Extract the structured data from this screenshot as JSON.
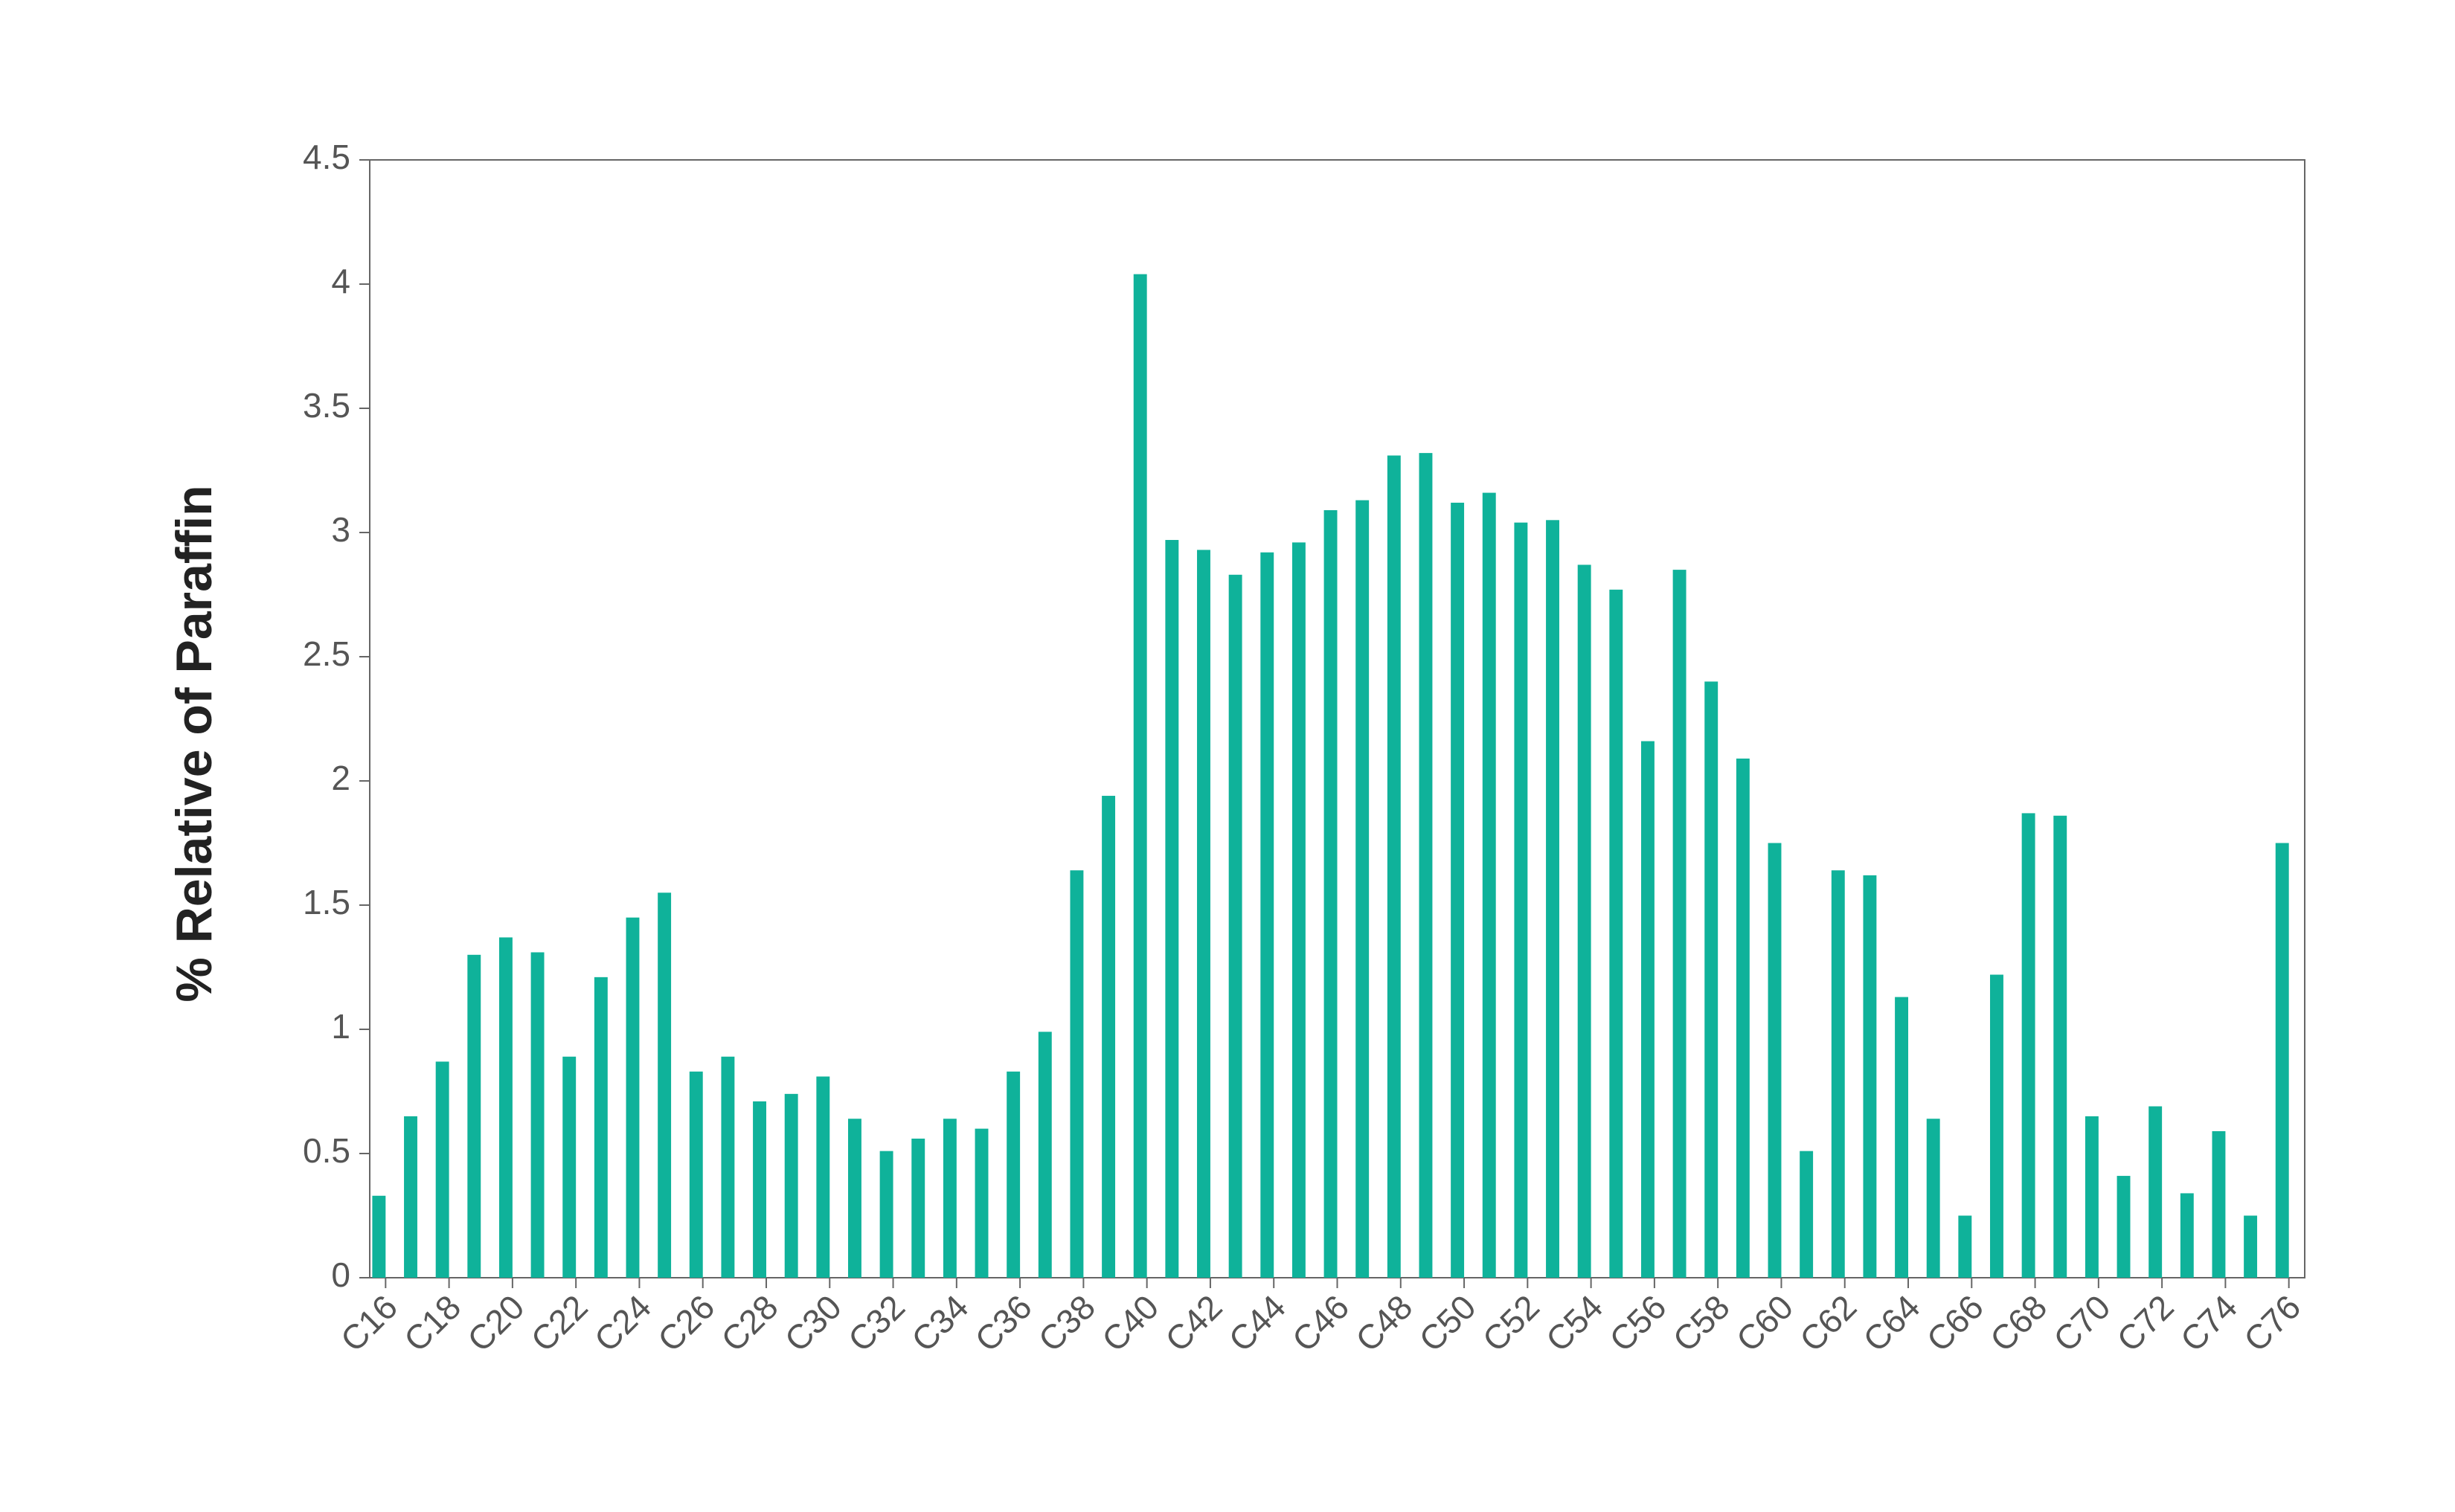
{
  "chart_data": {
    "type": "bar",
    "ylabel": "% Relative of Paraffin",
    "categories": [
      "C16",
      null,
      "C18",
      null,
      "C20",
      null,
      "C22",
      null,
      "C24",
      null,
      "C26",
      null,
      "C28",
      null,
      "C30",
      null,
      "C32",
      null,
      "C34",
      null,
      "C36",
      null,
      "C38",
      null,
      "C40",
      null,
      "C42",
      null,
      "C44",
      null,
      "C46",
      null,
      "C48",
      null,
      "C50",
      null,
      "C52",
      null,
      "C54",
      null,
      "C56",
      null,
      "C58",
      null,
      "C60",
      null,
      "C62",
      null,
      "C64",
      null,
      "C66",
      null,
      "C68",
      null,
      "C70",
      null,
      "C72",
      null,
      "C74",
      null,
      "C76"
    ],
    "values": [
      0.33,
      0.65,
      0.87,
      1.3,
      1.37,
      1.31,
      0.89,
      1.21,
      1.45,
      1.55,
      0.83,
      0.89,
      0.71,
      0.74,
      0.81,
      0.64,
      0.51,
      0.56,
      0.64,
      0.6,
      0.83,
      0.99,
      1.64,
      1.94,
      4.04,
      2.97,
      2.93,
      2.83,
      2.92,
      2.96,
      3.09,
      3.13,
      3.31,
      3.32,
      3.12,
      3.16,
      3.04,
      3.05,
      2.87,
      2.77,
      2.16,
      2.85,
      2.4,
      2.09,
      1.75,
      0.51,
      1.64,
      1.62,
      1.13,
      0.64,
      0.25,
      1.22,
      1.87,
      1.86,
      0.65,
      0.41,
      0.69,
      0.34,
      0.59,
      0.25,
      1.75
    ],
    "color": "#0fb29a",
    "ylim": [
      0,
      4.5
    ],
    "yticks": [
      0,
      0.5,
      1,
      1.5,
      2,
      2.5,
      3,
      3.5,
      4,
      4.5
    ]
  }
}
